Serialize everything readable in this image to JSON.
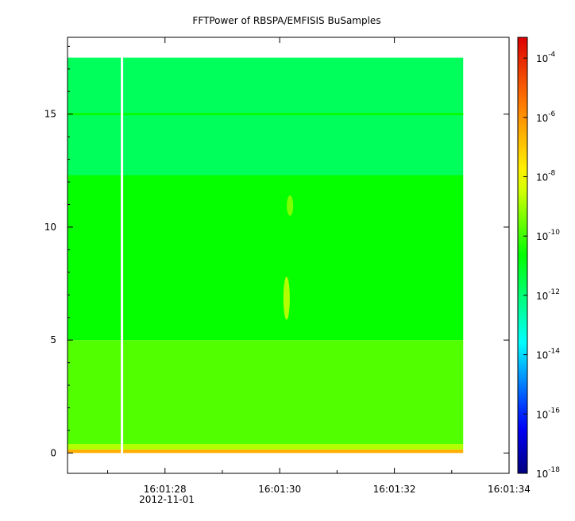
{
  "chart_data": {
    "type": "heatmap",
    "title": "FFTPower of RBSPA/EMFISIS  BuSamples",
    "xlabel": "",
    "ylabel": "",
    "x_tick_labels": [
      "16:01:28",
      "16:01:30",
      "16:01:32",
      "16:01:34"
    ],
    "x_tick_values": [
      28,
      30,
      32,
      34
    ],
    "x_date_label": "2012-11-01",
    "x_range_seconds": [
      26.3,
      34.0
    ],
    "data_x_range_seconds": [
      26.3,
      33.2
    ],
    "data_gap_seconds": 27.25,
    "y_range": [
      -0.9,
      18.4
    ],
    "data_y_range": [
      0,
      17.5
    ],
    "y_tick_values": [
      0,
      5,
      10,
      15
    ],
    "y_tick_labels": [
      "0",
      "5",
      "10",
      "15"
    ],
    "colorbar": {
      "scale": "log",
      "range_exponent": [
        -18,
        -3.3
      ],
      "tick_exponents": [
        -18,
        -16,
        -14,
        -12,
        -10,
        -8,
        -6,
        -4
      ],
      "tick_base": "10"
    },
    "bands": [
      {
        "y_range": [
          0,
          0.15
        ],
        "log10_power": -6.5
      },
      {
        "y_range": [
          0.15,
          0.4
        ],
        "log10_power": -8.8
      },
      {
        "y_range": [
          0.4,
          5
        ],
        "log10_power": -9.8
      },
      {
        "y_range": [
          5,
          12.3
        ],
        "log10_power": -10.6
      },
      {
        "y_range": [
          12.3,
          17.5
        ],
        "log10_power": -11.7
      },
      {
        "y_range": [
          14.95,
          15.05
        ],
        "log10_power": -10.6
      }
    ],
    "features": [
      {
        "x_seconds": 30.12,
        "y_range": [
          5.9,
          7.8
        ],
        "log10_power": -8.6
      },
      {
        "x_seconds": 30.18,
        "y_range": [
          10.5,
          11.4
        ],
        "log10_power": -9.2
      }
    ]
  }
}
